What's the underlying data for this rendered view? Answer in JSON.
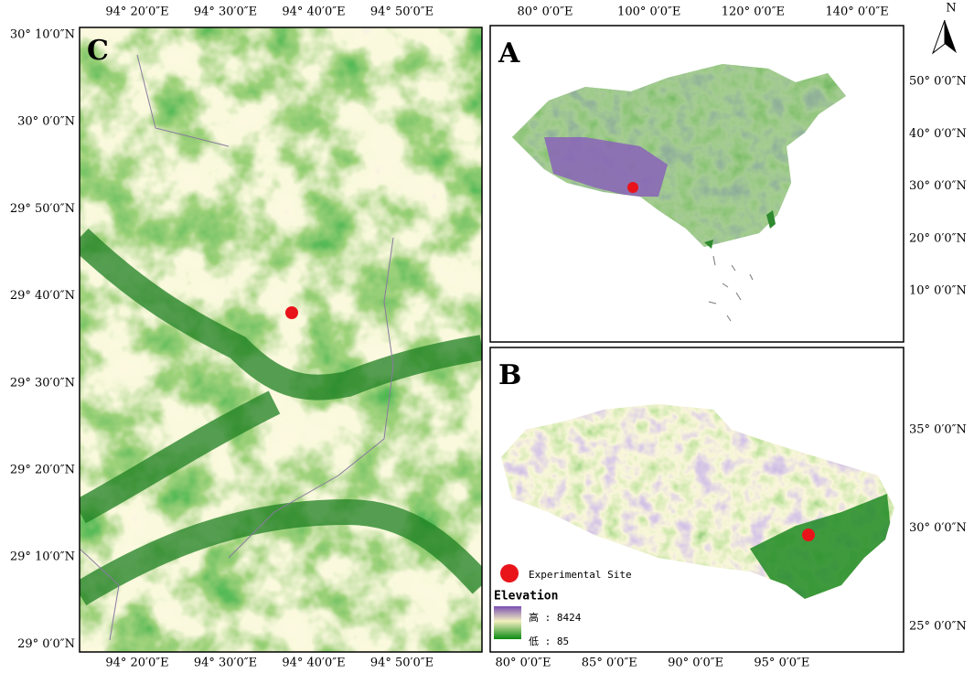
{
  "north_arrow": "N",
  "panel_c": {
    "label": "C",
    "top_ticks": [
      "94° 20′0″E",
      "94° 30′0″E",
      "94° 40′0″E",
      "94° 50′0″E"
    ],
    "bottom_ticks": [
      "94° 20′0″E",
      "94° 30′0″E",
      "94° 40′0″E",
      "94° 50′0″E"
    ],
    "left_ticks": [
      "30° 10′0″N",
      "30° 0′0″N",
      "29° 50′0″N",
      "29° 40′0″N",
      "29° 30′0″N",
      "29° 20′0″N",
      "29° 10′0″N",
      "29° 0′0″N"
    ]
  },
  "panel_a": {
    "label": "A",
    "top_ticks": [
      "80° 0′0″E",
      "100° 0′0″E",
      "120° 0′0″E",
      "140° 0′0″E"
    ],
    "right_ticks": [
      "50° 0′0″N",
      "40° 0′0″N",
      "30° 0′0″N",
      "20° 0′0″N",
      "10° 0′0″N"
    ]
  },
  "panel_b": {
    "label": "B",
    "bottom_ticks": [
      "80° 0′0″E",
      "85° 0′0″E",
      "90° 0′0″E",
      "95° 0′0″E"
    ],
    "right_ticks": [
      "35° 0′0″N",
      "30° 0′0″N",
      "25° 0′0″N"
    ],
    "legend": {
      "site": "Experimental Site",
      "elevation_title": "Elevation",
      "high": "高 : 8424",
      "low": "低 : 85"
    }
  }
}
